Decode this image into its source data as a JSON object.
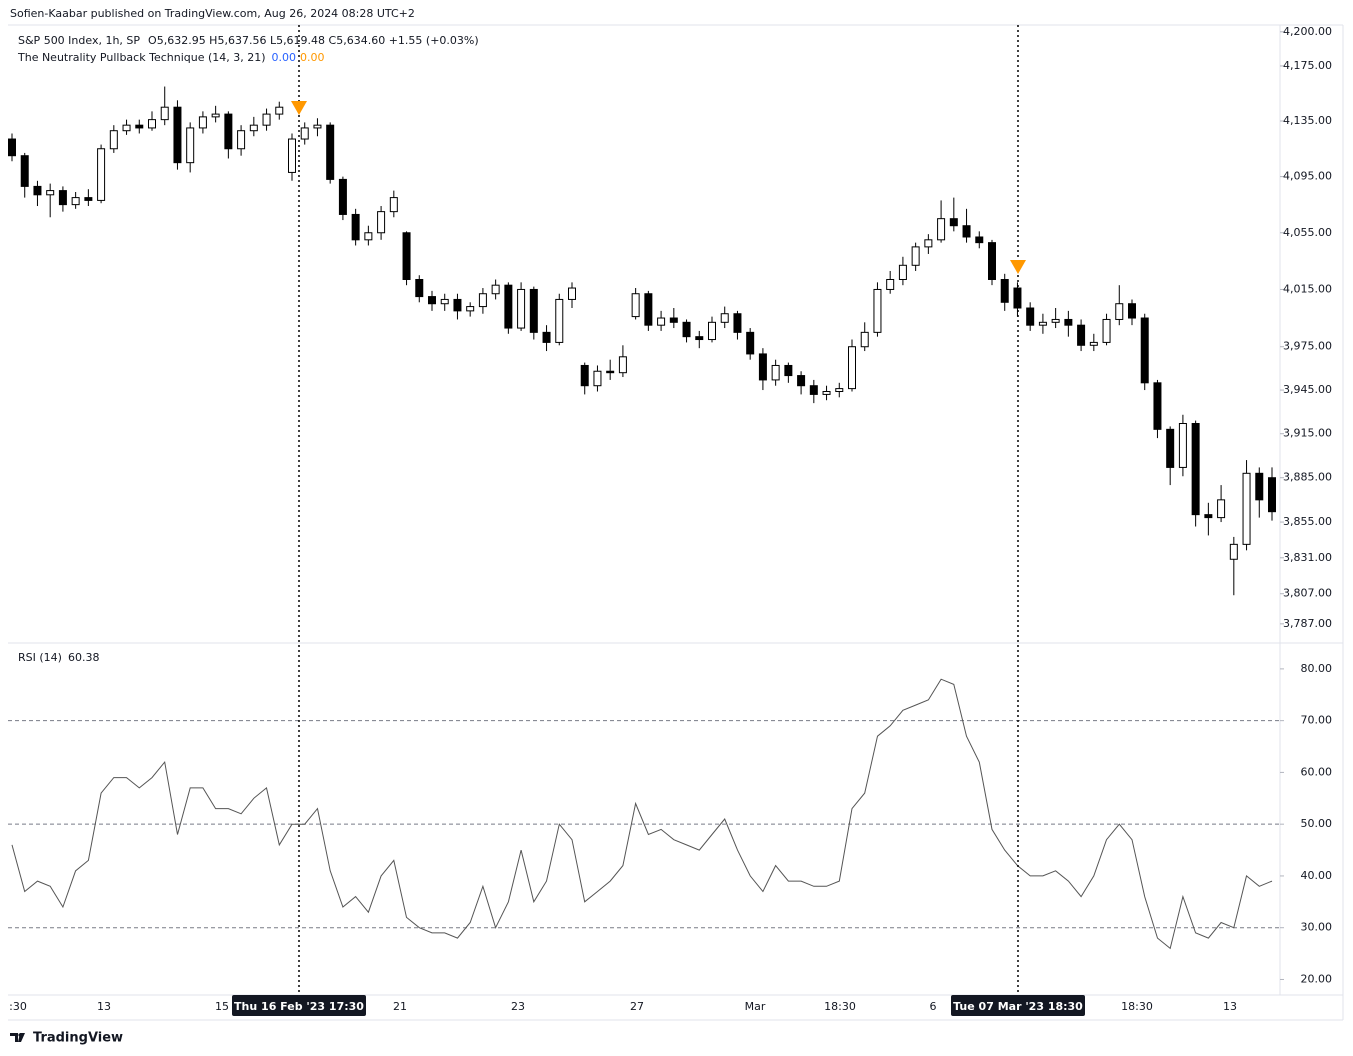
{
  "header": {
    "publisher": "Sofien-Kaabar published on TradingView.com, Aug 26, 2024 08:28 UTC+2",
    "symbol": "S&P 500 Index, 1h, SP",
    "ohlc": "O5,632.95  H5,637.56  L5,619.48  C5,634.60  +1.55 (+0.03%)",
    "indicator": "The Neutrality Pullback Technique (14, 3, 21)",
    "indicator_value_1": "0.00",
    "indicator_value_2": "0.00",
    "indicator_value_1_color": "#2962ff",
    "indicator_value_2_color": "#ff9800"
  },
  "footer": {
    "brand": "TradingView"
  },
  "chart_data": [
    {
      "type": "candlestick",
      "log": true,
      "up_color": "#ffffff",
      "down_color": "#000000",
      "border_color": "#000000",
      "ylim": [
        3775,
        4205
      ],
      "yticks": [
        {
          "value": 4200,
          "label": "4,200.00"
        },
        {
          "value": 4175,
          "label": "4,175.00"
        },
        {
          "value": 4135,
          "label": "4,135.00"
        },
        {
          "value": 4095,
          "label": "4,095.00"
        },
        {
          "value": 4055,
          "label": "4,055.00"
        },
        {
          "value": 4015,
          "label": "4,015.00"
        },
        {
          "value": 3975,
          "label": "3,975.00"
        },
        {
          "value": 3945,
          "label": "3,945.00"
        },
        {
          "value": 3915,
          "label": "3,915.00"
        },
        {
          "value": 3885,
          "label": "3,885.00"
        },
        {
          "value": 3855,
          "label": "3,855.00"
        },
        {
          "value": 3831,
          "label": "3,831.00"
        },
        {
          "value": 3807,
          "label": "3,807.00"
        },
        {
          "value": 3787,
          "label": "3,787.00"
        }
      ],
      "candles": [
        [
          4122,
          4126,
          4106,
          4110
        ],
        [
          4110,
          4112,
          4080,
          4088
        ],
        [
          4088,
          4092,
          4074,
          4082
        ],
        [
          4082,
          4090,
          4066,
          4085
        ],
        [
          4085,
          4088,
          4070,
          4075
        ],
        [
          4075,
          4084,
          4072,
          4080
        ],
        [
          4080,
          4086,
          4074,
          4078
        ],
        [
          4078,
          4118,
          4076,
          4115
        ],
        [
          4115,
          4132,
          4112,
          4128
        ],
        [
          4128,
          4136,
          4125,
          4132
        ],
        [
          4132,
          4136,
          4126,
          4130
        ],
        [
          4130,
          4142,
          4128,
          4136
        ],
        [
          4136,
          4160,
          4132,
          4145
        ],
        [
          4145,
          4150,
          4100,
          4105
        ],
        [
          4105,
          4134,
          4098,
          4130
        ],
        [
          4130,
          4142,
          4126,
          4138
        ],
        [
          4138,
          4146,
          4134,
          4140
        ],
        [
          4140,
          4142,
          4108,
          4115
        ],
        [
          4115,
          4132,
          4110,
          4128
        ],
        [
          4128,
          4138,
          4124,
          4132
        ],
        [
          4132,
          4144,
          4128,
          4140
        ],
        [
          4140,
          4149,
          4136,
          4145
        ],
        [
          4098,
          4126,
          4092,
          4122
        ],
        [
          4122,
          4134,
          4118,
          4130
        ],
        [
          4130,
          4137,
          4124,
          4132
        ],
        [
          4132,
          4134,
          4090,
          4093
        ],
        [
          4093,
          4095,
          4064,
          4068
        ],
        [
          4068,
          4072,
          4046,
          4050
        ],
        [
          4050,
          4060,
          4046,
          4055
        ],
        [
          4055,
          4074,
          4050,
          4070
        ],
        [
          4070,
          4085,
          4066,
          4080
        ],
        [
          4055,
          4056,
          4018,
          4022
        ],
        [
          4022,
          4025,
          4006,
          4010
        ],
        [
          4010,
          4014,
          4000,
          4005
        ],
        [
          4005,
          4012,
          4000,
          4008
        ],
        [
          4008,
          4012,
          3994,
          4000
        ],
        [
          4000,
          4006,
          3996,
          4003
        ],
        [
          4003,
          4016,
          3998,
          4012
        ],
        [
          4012,
          4022,
          4008,
          4018
        ],
        [
          4018,
          4020,
          3984,
          3988
        ],
        [
          3988,
          4020,
          3986,
          4015
        ],
        [
          4015,
          4017,
          3980,
          3985
        ],
        [
          3985,
          3990,
          3972,
          3978
        ],
        [
          3978,
          4012,
          3976,
          4008
        ],
        [
          4008,
          4020,
          4002,
          4016
        ],
        [
          3962,
          3964,
          3942,
          3948
        ],
        [
          3948,
          3962,
          3944,
          3958
        ],
        [
          3958,
          3966,
          3952,
          3957
        ],
        [
          3957,
          3976,
          3954,
          3968
        ],
        [
          3996,
          4016,
          3994,
          4012
        ],
        [
          4012,
          4014,
          3986,
          3990
        ],
        [
          3990,
          4000,
          3986,
          3995
        ],
        [
          3995,
          4002,
          3988,
          3992
        ],
        [
          3992,
          3994,
          3978,
          3982
        ],
        [
          3982,
          3986,
          3974,
          3980
        ],
        [
          3980,
          3996,
          3978,
          3992
        ],
        [
          3992,
          4003,
          3988,
          3998
        ],
        [
          3998,
          4000,
          3980,
          3985
        ],
        [
          3985,
          3988,
          3966,
          3970
        ],
        [
          3970,
          3974,
          3945,
          3952
        ],
        [
          3952,
          3966,
          3948,
          3962
        ],
        [
          3962,
          3964,
          3950,
          3955
        ],
        [
          3955,
          3958,
          3942,
          3948
        ],
        [
          3948,
          3952,
          3936,
          3942
        ],
        [
          3942,
          3948,
          3938,
          3944
        ],
        [
          3944,
          3950,
          3940,
          3946
        ],
        [
          3946,
          3980,
          3944,
          3975
        ],
        [
          3975,
          3992,
          3972,
          3985
        ],
        [
          3985,
          4020,
          3982,
          4015
        ],
        [
          4015,
          4028,
          4012,
          4022
        ],
        [
          4022,
          4038,
          4018,
          4032
        ],
        [
          4032,
          4048,
          4028,
          4045
        ],
        [
          4045,
          4054,
          4040,
          4050
        ],
        [
          4050,
          4078,
          4048,
          4065
        ],
        [
          4065,
          4080,
          4056,
          4060
        ],
        [
          4060,
          4072,
          4048,
          4052
        ],
        [
          4052,
          4056,
          4044,
          4048
        ],
        [
          4048,
          4050,
          4018,
          4022
        ],
        [
          4022,
          4026,
          4000,
          4006
        ],
        [
          4016,
          4020,
          3996,
          4002
        ],
        [
          4002,
          4006,
          3986,
          3990
        ],
        [
          3990,
          3998,
          3984,
          3992
        ],
        [
          3992,
          4002,
          3988,
          3994
        ],
        [
          3994,
          4000,
          3982,
          3990
        ],
        [
          3990,
          3994,
          3972,
          3976
        ],
        [
          3976,
          3984,
          3972,
          3978
        ],
        [
          3978,
          3998,
          3976,
          3994
        ],
        [
          3994,
          4018,
          3990,
          4005
        ],
        [
          4005,
          4008,
          3990,
          3995
        ],
        [
          3995,
          3998,
          3945,
          3950
        ],
        [
          3950,
          3952,
          3912,
          3918
        ],
        [
          3918,
          3920,
          3880,
          3892
        ],
        [
          3892,
          3928,
          3886,
          3922
        ],
        [
          3922,
          3924,
          3852,
          3860
        ],
        [
          3860,
          3868,
          3846,
          3858
        ],
        [
          3858,
          3880,
          3855,
          3870
        ],
        [
          3830,
          3845,
          3806,
          3840
        ],
        [
          3840,
          3897,
          3836,
          3888
        ],
        [
          3888,
          3892,
          3858,
          3870
        ],
        [
          3885,
          3892,
          3856,
          3862
        ]
      ],
      "signal_color": "#ff9800"
    },
    {
      "type": "line",
      "title": "RSI (14)",
      "last_value": "60.38",
      "color": "#555555",
      "ylim": [
        17,
        85
      ],
      "yticks": [
        {
          "value": 80,
          "label": "80.00"
        },
        {
          "value": 70,
          "label": "70.00"
        },
        {
          "value": 60,
          "label": "60.00"
        },
        {
          "value": 50,
          "label": "50.00"
        },
        {
          "value": 40,
          "label": "40.00"
        },
        {
          "value": 30,
          "label": "30.00"
        },
        {
          "value": 20,
          "label": "20.00"
        }
      ],
      "levels": [
        70,
        50,
        30
      ],
      "values": [
        46,
        37,
        39,
        38,
        34,
        41,
        43,
        56,
        59,
        59,
        57,
        59,
        62,
        48,
        57,
        57,
        53,
        53,
        52,
        55,
        57,
        46,
        50,
        50,
        53,
        41,
        34,
        36,
        33,
        40,
        43,
        32,
        30,
        29,
        29,
        28,
        31,
        38,
        30,
        35,
        45,
        35,
        39,
        50,
        47,
        35,
        37,
        39,
        42,
        54,
        48,
        49,
        47,
        46,
        45,
        48,
        51,
        45,
        40,
        37,
        42,
        39,
        39,
        38,
        38,
        39,
        53,
        56,
        67,
        69,
        72,
        73,
        74,
        78,
        77,
        67,
        62,
        49,
        45,
        42,
        40,
        40,
        41,
        39,
        36,
        40,
        47,
        50,
        47,
        36,
        28,
        26,
        36,
        29,
        28,
        31,
        30,
        40,
        38,
        39
      ]
    }
  ],
  "x_labels": [
    ":30",
    "13",
    "15",
    "21",
    "23",
    "27",
    "Mar",
    "18:30",
    "6",
    "18:30",
    "13"
  ],
  "crosshairs": [
    {
      "label": "Thu 16 Feb '23   17:30"
    },
    {
      "label": "Tue 07 Mar '23   18:30"
    }
  ]
}
